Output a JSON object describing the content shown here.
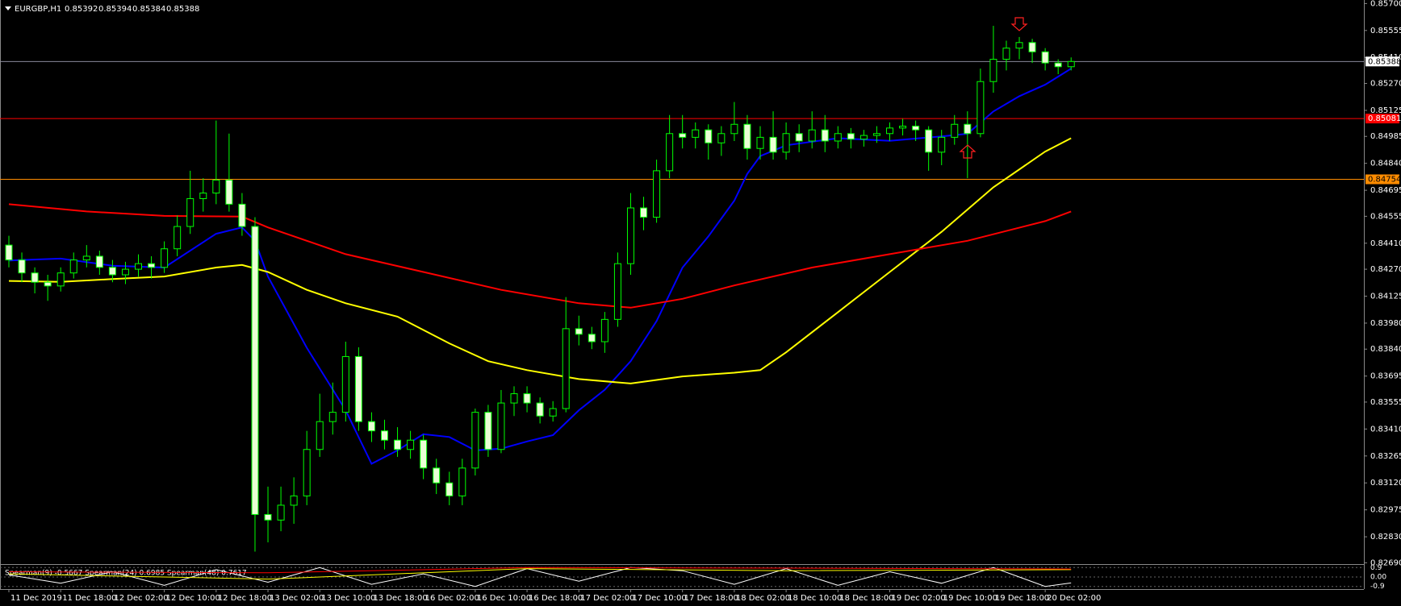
{
  "chart_data": {
    "type": "candlestick",
    "symbol": "EURGBP,H1",
    "quote": [
      0.85392,
      0.85394,
      0.85384,
      0.85388
    ],
    "xlim": [
      -0.685,
      104.6
    ],
    "xticks": [
      {
        "value": 0,
        "label": "11 Dec 2019"
      },
      {
        "value": 4,
        "label": "11 Dec 18:00"
      },
      {
        "value": 8,
        "label": "12 Dec 02:00"
      },
      {
        "value": 12,
        "label": "12 Dec 10:00"
      },
      {
        "value": 16,
        "label": "12 Dec 18:00"
      },
      {
        "value": 20,
        "label": "13 Dec 02:00"
      },
      {
        "value": 24,
        "label": "13 Dec 10:00"
      },
      {
        "value": 28,
        "label": "13 Dec 18:00"
      },
      {
        "value": 32,
        "label": "16 Dec 02:00"
      },
      {
        "value": 36,
        "label": "16 Dec 10:00"
      },
      {
        "value": 40,
        "label": "16 Dec 18:00"
      },
      {
        "value": 44,
        "label": "17 Dec 02:00"
      },
      {
        "value": 48,
        "label": "17 Dec 10:00"
      },
      {
        "value": 52,
        "label": "17 Dec 18:00"
      },
      {
        "value": 56,
        "label": "18 Dec 02:00"
      },
      {
        "value": 60,
        "label": "18 Dec 10:00"
      },
      {
        "value": 64,
        "label": "18 Dec 18:00"
      },
      {
        "value": 68,
        "label": "19 Dec 02:00"
      },
      {
        "value": 72,
        "label": "19 Dec 10:00"
      },
      {
        "value": 76,
        "label": "19 Dec 18:00"
      },
      {
        "value": 80,
        "label": "20 Dec 02:00"
      }
    ],
    "ylim": [
      0.82683,
      0.85719
    ],
    "yticks": [
      {
        "value": 0.857,
        "label": "0.85700"
      },
      0.85555,
      {
        "value": 0.8541,
        "label": "0.85410"
      },
      {
        "value": 0.8527,
        "label": "0.85270"
      },
      0.85125,
      0.84985,
      {
        "value": 0.8484,
        "label": "0.84840"
      },
      0.84695,
      0.84555,
      {
        "value": 0.8441,
        "label": "0.84410"
      },
      {
        "value": 0.8427,
        "label": "0.84270"
      },
      0.84125,
      {
        "value": 0.8398,
        "label": "0.83980"
      },
      {
        "value": 0.8384,
        "label": "0.83840"
      },
      0.83695,
      0.83555,
      {
        "value": 0.8341,
        "label": "0.83410"
      },
      0.83265,
      {
        "value": 0.8312,
        "label": "0.83120"
      },
      0.82975,
      {
        "value": 0.8283,
        "label": "0.82830"
      },
      {
        "value": 0.8269,
        "label": "0.82690"
      }
    ],
    "bull_color": "#000000",
    "bear_color": "#eaffd5",
    "outline_color": "#00ff00",
    "ohlc": [
      [
        0.844,
        0.8445,
        0.8428,
        0.8432
      ],
      [
        0.8432,
        0.8436,
        0.842,
        0.8425
      ],
      [
        0.8425,
        0.8428,
        0.8414,
        0.842
      ],
      [
        0.842,
        0.8424,
        0.841,
        0.8418
      ],
      [
        0.8418,
        0.8428,
        0.8415,
        0.8425
      ],
      [
        0.8425,
        0.8436,
        0.8422,
        0.8432
      ],
      [
        0.8432,
        0.844,
        0.8428,
        0.8434
      ],
      [
        0.8434,
        0.8437,
        0.8424,
        0.8428
      ],
      [
        0.8428,
        0.8432,
        0.842,
        0.8424
      ],
      [
        0.8424,
        0.8431,
        0.8419,
        0.8427
      ],
      [
        0.8427,
        0.8435,
        0.8423,
        0.843
      ],
      [
        0.843,
        0.8434,
        0.8422,
        0.8428
      ],
      [
        0.8428,
        0.8442,
        0.8425,
        0.8438
      ],
      [
        0.8438,
        0.8456,
        0.8434,
        0.845
      ],
      [
        0.845,
        0.848,
        0.8446,
        0.8465
      ],
      [
        0.8465,
        0.8476,
        0.8458,
        0.8468
      ],
      [
        0.8468,
        0.8507,
        0.8462,
        0.8475
      ],
      [
        0.8475,
        0.85,
        0.8458,
        0.8462
      ],
      [
        0.8462,
        0.8468,
        0.8445,
        0.845
      ],
      [
        0.845,
        0.8455,
        0.8275,
        0.8295
      ],
      [
        0.8295,
        0.831,
        0.828,
        0.8292
      ],
      [
        0.8292,
        0.831,
        0.8286,
        0.83
      ],
      [
        0.83,
        0.8315,
        0.829,
        0.8305
      ],
      [
        0.8305,
        0.834,
        0.83,
        0.833
      ],
      [
        0.833,
        0.836,
        0.8326,
        0.8345
      ],
      [
        0.8345,
        0.8366,
        0.8338,
        0.835
      ],
      [
        0.835,
        0.8388,
        0.8345,
        0.838
      ],
      [
        0.838,
        0.8385,
        0.834,
        0.8345
      ],
      [
        0.8345,
        0.835,
        0.8334,
        0.834
      ],
      [
        0.834,
        0.8346,
        0.833,
        0.8335
      ],
      [
        0.8335,
        0.8342,
        0.8326,
        0.833
      ],
      [
        0.833,
        0.834,
        0.8325,
        0.8335
      ],
      [
        0.8335,
        0.8338,
        0.8314,
        0.832
      ],
      [
        0.832,
        0.8325,
        0.8306,
        0.8312
      ],
      [
        0.8312,
        0.8318,
        0.83,
        0.8305
      ],
      [
        0.8305,
        0.8325,
        0.83,
        0.832
      ],
      [
        0.832,
        0.8352,
        0.8316,
        0.835
      ],
      [
        0.835,
        0.8354,
        0.8326,
        0.833
      ],
      [
        0.833,
        0.8362,
        0.8328,
        0.8355
      ],
      [
        0.8355,
        0.8364,
        0.8348,
        0.836
      ],
      [
        0.836,
        0.8364,
        0.835,
        0.8355
      ],
      [
        0.8355,
        0.8358,
        0.8344,
        0.8348
      ],
      [
        0.8348,
        0.8356,
        0.8345,
        0.8352
      ],
      [
        0.8352,
        0.8412,
        0.835,
        0.8395
      ],
      [
        0.8395,
        0.8402,
        0.8386,
        0.8392
      ],
      [
        0.8392,
        0.8396,
        0.8384,
        0.8388
      ],
      [
        0.8388,
        0.8404,
        0.8382,
        0.84
      ],
      [
        0.84,
        0.8436,
        0.8396,
        0.843
      ],
      [
        0.843,
        0.8468,
        0.8424,
        0.846
      ],
      [
        0.846,
        0.8466,
        0.8448,
        0.8455
      ],
      [
        0.8455,
        0.8486,
        0.8452,
        0.848
      ],
      [
        0.848,
        0.851,
        0.8476,
        0.85
      ],
      [
        0.85,
        0.851,
        0.8492,
        0.8498
      ],
      [
        0.8498,
        0.8506,
        0.8492,
        0.8502
      ],
      [
        0.8502,
        0.8505,
        0.8486,
        0.8495
      ],
      [
        0.8495,
        0.8504,
        0.8488,
        0.85
      ],
      [
        0.85,
        0.8517,
        0.8496,
        0.8505
      ],
      [
        0.8505,
        0.851,
        0.8486,
        0.8492
      ],
      [
        0.8492,
        0.8504,
        0.8486,
        0.8498
      ],
      [
        0.8498,
        0.8512,
        0.8486,
        0.849
      ],
      [
        0.849,
        0.8506,
        0.8486,
        0.85
      ],
      [
        0.85,
        0.8505,
        0.849,
        0.8496
      ],
      [
        0.8496,
        0.8512,
        0.8492,
        0.8502
      ],
      [
        0.8502,
        0.851,
        0.849,
        0.8496
      ],
      [
        0.8496,
        0.8504,
        0.8492,
        0.85
      ],
      [
        0.85,
        0.8503,
        0.8492,
        0.8497
      ],
      [
        0.8497,
        0.8502,
        0.8493,
        0.8499
      ],
      [
        0.8499,
        0.8504,
        0.8495,
        0.85
      ],
      [
        0.85,
        0.8506,
        0.8496,
        0.8503
      ],
      [
        0.8503,
        0.8508,
        0.8499,
        0.8504
      ],
      [
        0.8504,
        0.8507,
        0.8496,
        0.8502
      ],
      [
        0.8502,
        0.8504,
        0.848,
        0.849
      ],
      [
        0.849,
        0.8502,
        0.8483,
        0.8498
      ],
      [
        0.8498,
        0.851,
        0.8494,
        0.8505
      ],
      [
        0.8505,
        0.8512,
        0.8476,
        0.85
      ],
      [
        0.85,
        0.8535,
        0.8498,
        0.8528
      ],
      [
        0.8528,
        0.8558,
        0.8522,
        0.854
      ],
      [
        0.854,
        0.855,
        0.8534,
        0.8546
      ],
      [
        0.8546,
        0.8552,
        0.854,
        0.8549
      ],
      [
        0.8549,
        0.8551,
        0.8538,
        0.8544
      ],
      [
        0.8544,
        0.8546,
        0.8534,
        0.8538
      ],
      [
        0.8538,
        0.854,
        0.8532,
        0.8536
      ],
      [
        0.8536,
        0.8541,
        0.8534,
        0.85388
      ]
    ],
    "moving_averages": [
      {
        "color": "#0000ff",
        "x": [
          0,
          4,
          8,
          12,
          16,
          18,
          19,
          20,
          23,
          26,
          28,
          30,
          32,
          34,
          36,
          38,
          40,
          42,
          44,
          46,
          48,
          50,
          52,
          54,
          56,
          57,
          58,
          60,
          64,
          68,
          72,
          74,
          76,
          78,
          80,
          82
        ],
        "values": [
          0.84317,
          0.84327,
          0.84289,
          0.84279,
          0.84461,
          0.84495,
          0.84423,
          0.84231,
          0.83847,
          0.83511,
          0.83223,
          0.83295,
          0.83382,
          0.83367,
          0.83295,
          0.83304,
          0.83343,
          0.83377,
          0.83511,
          0.83621,
          0.83775,
          0.83991,
          0.84279,
          0.84447,
          0.84639,
          0.84783,
          0.84879,
          0.84937,
          0.84975,
          0.84961,
          0.84985,
          0.84999,
          0.85119,
          0.85201,
          0.85263,
          0.8535
        ]
      },
      {
        "color": "#ffff00",
        "x": [
          0,
          4,
          8,
          12,
          16,
          18,
          20,
          23,
          26,
          30,
          34,
          37,
          40,
          44,
          48,
          52,
          56,
          58,
          60,
          64,
          68,
          72,
          76,
          80,
          82
        ],
        "values": [
          0.84207,
          0.84202,
          0.84217,
          0.84231,
          0.84279,
          0.84293,
          0.84255,
          0.84159,
          0.84087,
          0.84015,
          0.83871,
          0.83775,
          0.83727,
          0.83679,
          0.83655,
          0.83693,
          0.83713,
          0.83727,
          0.83823,
          0.84039,
          0.84255,
          0.84471,
          0.84711,
          0.84903,
          0.84975
        ]
      },
      {
        "color": "#ff0000",
        "x": [
          0,
          6,
          12,
          18,
          20,
          26,
          32,
          38,
          44,
          48,
          52,
          56,
          62,
          68,
          74,
          80,
          82
        ],
        "values": [
          0.8462,
          0.84581,
          0.84557,
          0.84553,
          0.84495,
          0.84351,
          0.84255,
          0.84159,
          0.84087,
          0.84063,
          0.84111,
          0.84183,
          0.84279,
          0.84351,
          0.84423,
          0.84529,
          0.84581
        ]
      }
    ],
    "levels": [
      {
        "value": 0.85388,
        "color": "#8a8a9a",
        "label_bg": "#ffffff",
        "label_fg": "#000000"
      },
      {
        "value": 0.85081,
        "color": "#ff0000",
        "label_bg": "#ff0000",
        "label_fg": "#ffffff"
      },
      {
        "value": 0.84754,
        "color": "#ff8c00",
        "label_bg": "#ff8c00",
        "label_fg": "#000000"
      }
    ],
    "indicator": {
      "label": "Spearman(9) -0.5667 Spearman(24) 0.6985 Spearman(48) 0.7617",
      "ylim": [
        -1,
        1
      ],
      "yticks": [
        {
          "value": 0.9,
          "label": "0.9"
        },
        {
          "value": 0,
          "label": "0.00"
        },
        {
          "value": -0.9,
          "label": "-0.9"
        }
      ],
      "series": [
        {
          "color": "#ffffff",
          "x": [
            0,
            4,
            8,
            12,
            16,
            20,
            24,
            28,
            32,
            36,
            40,
            44,
            48,
            52,
            56,
            60,
            64,
            68,
            72,
            76,
            80,
            82
          ],
          "values": [
            0.2,
            -0.6,
            0.5,
            -0.8,
            0.7,
            -0.5,
            0.9,
            -0.7,
            0.3,
            -0.9,
            0.8,
            -0.4,
            0.9,
            0.6,
            -0.7,
            0.8,
            -0.8,
            0.5,
            -0.6,
            0.9,
            -0.9,
            -0.5667
          ]
        },
        {
          "color": "#ffff00",
          "x": [
            0,
            20,
            40,
            60,
            82
          ],
          "values": [
            0.3,
            -0.2,
            0.8,
            0.6,
            0.6985
          ]
        },
        {
          "color": "#ff0000",
          "x": [
            0,
            20,
            40,
            60,
            82
          ],
          "values": [
            0.5,
            0.4,
            0.9,
            0.85,
            0.7617
          ]
        }
      ]
    }
  }
}
